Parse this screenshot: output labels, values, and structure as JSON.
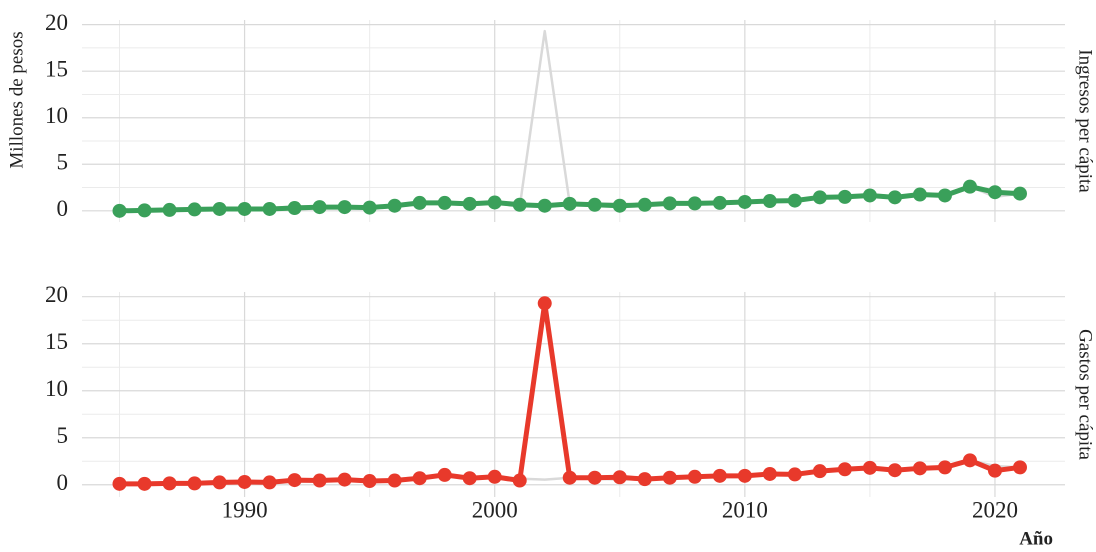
{
  "chart_data": [
    {
      "type": "line",
      "y_label": "Millones de pesos",
      "x": [
        1985,
        1986,
        1987,
        1988,
        1989,
        1990,
        1991,
        1992,
        1993,
        1994,
        1995,
        1996,
        1997,
        1998,
        1999,
        2000,
        2001,
        2002,
        2003,
        2004,
        2005,
        2006,
        2007,
        2008,
        2009,
        2010,
        2011,
        2012,
        2013,
        2014,
        2015,
        2016,
        2017,
        2018,
        2019,
        2020,
        2021
      ],
      "series": [
        {
          "name": "Ingresos per cápita",
          "color": "#3aa05a",
          "values": [
            0,
            0.05,
            0.1,
            0.15,
            0.2,
            0.2,
            0.2,
            0.3,
            0.4,
            0.4,
            0.35,
            0.55,
            0.85,
            0.85,
            0.75,
            0.9,
            0.65,
            0.55,
            0.75,
            0.65,
            0.55,
            0.65,
            0.8,
            0.8,
            0.85,
            0.95,
            1.05,
            1.1,
            1.45,
            1.5,
            1.65,
            1.45,
            1.75,
            1.65,
            2.6,
            2.0,
            1.85
          ]
        }
      ],
      "context_color": "#d9d9d9",
      "xlim": [
        1983.5,
        2022.8
      ],
      "xticks": [
        1990,
        2000,
        2010,
        2020
      ],
      "ylim": [
        -1.2,
        20.5
      ],
      "yticks": [
        0,
        5,
        10,
        15,
        20
      ],
      "grid": true
    },
    {
      "type": "line",
      "x_label": "Año",
      "x": [
        1985,
        1986,
        1987,
        1988,
        1989,
        1990,
        1991,
        1992,
        1993,
        1994,
        1995,
        1996,
        1997,
        1998,
        1999,
        2000,
        2001,
        2002,
        2003,
        2004,
        2005,
        2006,
        2007,
        2008,
        2009,
        2010,
        2011,
        2012,
        2013,
        2014,
        2015,
        2016,
        2017,
        2018,
        2019,
        2020,
        2021
      ],
      "series": [
        {
          "name": "Gastos per cápita",
          "color": "#e8392b",
          "values": [
            0.1,
            0.1,
            0.15,
            0.15,
            0.25,
            0.3,
            0.25,
            0.5,
            0.45,
            0.55,
            0.4,
            0.45,
            0.7,
            1.05,
            0.7,
            0.85,
            0.45,
            19.3,
            0.75,
            0.75,
            0.8,
            0.6,
            0.75,
            0.85,
            0.95,
            0.95,
            1.15,
            1.1,
            1.45,
            1.65,
            1.8,
            1.55,
            1.75,
            1.85,
            2.6,
            1.5,
            1.85
          ]
        }
      ],
      "context_color": "#d9d9d9",
      "xlim": [
        1983.5,
        2022.8
      ],
      "xticks": [
        1990,
        2000,
        2010,
        2020
      ],
      "ylim": [
        -1.3,
        20.5
      ],
      "yticks": [
        0,
        5,
        10,
        15,
        20
      ],
      "grid": true
    }
  ]
}
